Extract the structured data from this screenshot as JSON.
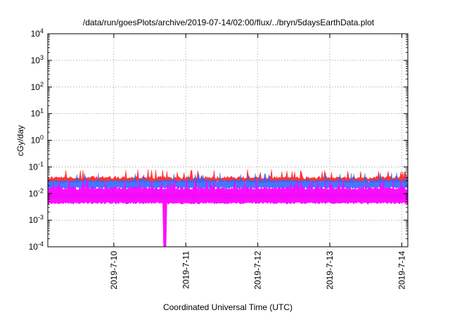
{
  "chart_data": {
    "type": "area",
    "title": "/data/run/goesPlots/archive/2019-07-14/02:00/flux/../bryn/5daysEarthData.plot",
    "xlabel": "Coordinated Universal Time (UTC)",
    "ylabel": "cGy/day",
    "y_scale": "log",
    "ylim": [
      0.0001,
      10000
    ],
    "xlim": [
      "2019-07-09 02:00",
      "2019-07-14 02:00"
    ],
    "grid": true,
    "x_ticks": [
      {
        "value": "2019-07-10",
        "label": "2019-7-10"
      },
      {
        "value": "2019-07-11",
        "label": "2019-7-11"
      },
      {
        "value": "2019-07-12",
        "label": "2019-7-12"
      },
      {
        "value": "2019-07-13",
        "label": "2019-7-13"
      },
      {
        "value": "2019-07-14",
        "label": "2019-7-14"
      }
    ],
    "y_ticks": [
      {
        "value": 0.0001,
        "base": "10",
        "exp": "-4"
      },
      {
        "value": 0.001,
        "base": "10",
        "exp": "-3"
      },
      {
        "value": 0.01,
        "base": "10",
        "exp": "-2"
      },
      {
        "value": 0.1,
        "base": "10",
        "exp": "-1"
      },
      {
        "value": 1,
        "base": "10",
        "exp": "0"
      },
      {
        "value": 10,
        "base": "10",
        "exp": "1"
      },
      {
        "value": 100,
        "base": "10",
        "exp": "2"
      },
      {
        "value": 1000,
        "base": "10",
        "exp": "3"
      },
      {
        "value": 10000,
        "base": "10",
        "exp": "4"
      }
    ],
    "series": [
      {
        "color": "#ff2020",
        "typical_low": 0.025,
        "typical_high": 0.045
      },
      {
        "color": "#00dd88",
        "typical_low": 0.006,
        "typical_high": 0.012
      },
      {
        "color": "#3366ff",
        "typical_low": 0.015,
        "typical_high": 0.035
      },
      {
        "color": "#ff00ff",
        "typical_low": 0.004,
        "typical_high": 0.018,
        "dropout_time": "2019-07-10 17:00",
        "dropout_value": 0.0001
      }
    ]
  }
}
